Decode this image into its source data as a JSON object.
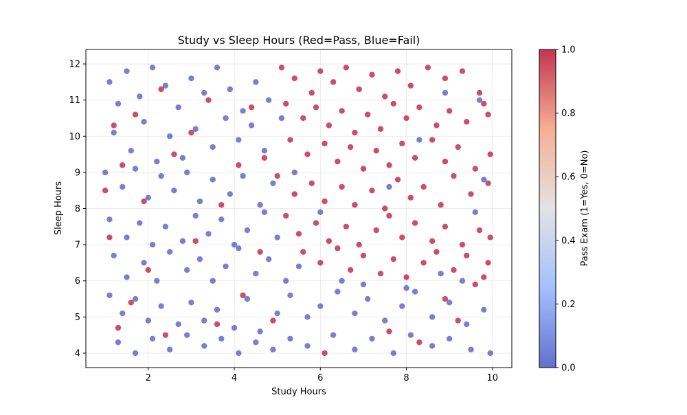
{
  "chart_data": {
    "type": "scatter",
    "title": "Study vs Sleep Hours (Red=Pass, Blue=Fail)",
    "xlabel": "Study Hours",
    "ylabel": "Sleep Hours",
    "xlim": [
      0.55,
      10.45
    ],
    "ylim": [
      3.6,
      12.4
    ],
    "xticks": [
      "2",
      "4",
      "6",
      "8",
      "10"
    ],
    "yticks": [
      "4",
      "5",
      "6",
      "7",
      "8",
      "9",
      "10",
      "11",
      "12"
    ],
    "grid": true,
    "colorbar": {
      "label": "Pass Exam (1=Yes, 0=No)",
      "ticks": [
        "0.0",
        "0.2",
        "0.4",
        "0.6",
        "0.8",
        "1.0"
      ],
      "colormap": "coolwarm",
      "range": [
        0,
        1
      ]
    },
    "series": [
      {
        "name": "Pass",
        "value": 1,
        "color": "#b40426",
        "points": [
          [
            5.1,
            11.9
          ],
          [
            5.4,
            11.6
          ],
          [
            5.8,
            11.2
          ],
          [
            6.0,
            11.8
          ],
          [
            6.3,
            11.5
          ],
          [
            6.6,
            11.9
          ],
          [
            6.9,
            11.3
          ],
          [
            7.2,
            11.7
          ],
          [
            7.5,
            11.1
          ],
          [
            7.8,
            11.8
          ],
          [
            8.1,
            11.4
          ],
          [
            8.5,
            11.9
          ],
          [
            8.9,
            11.6
          ],
          [
            9.3,
            11.8
          ],
          [
            9.7,
            11.2
          ],
          [
            9.9,
            10.6
          ],
          [
            5.2,
            10.9
          ],
          [
            5.6,
            10.5
          ],
          [
            5.9,
            10.8
          ],
          [
            6.2,
            10.3
          ],
          [
            6.5,
            10.7
          ],
          [
            6.8,
            10.1
          ],
          [
            7.1,
            10.6
          ],
          [
            7.4,
            10.2
          ],
          [
            7.7,
            10.9
          ],
          [
            8.0,
            10.5
          ],
          [
            8.3,
            10.8
          ],
          [
            8.7,
            10.3
          ],
          [
            9.0,
            10.7
          ],
          [
            9.4,
            10.4
          ],
          [
            9.8,
            10.9
          ],
          [
            5.3,
            9.9
          ],
          [
            5.7,
            9.5
          ],
          [
            6.1,
            9.8
          ],
          [
            6.4,
            9.3
          ],
          [
            6.7,
            9.7
          ],
          [
            7.0,
            9.1
          ],
          [
            7.3,
            9.6
          ],
          [
            7.6,
            9.2
          ],
          [
            7.9,
            9.8
          ],
          [
            8.2,
            9.4
          ],
          [
            8.6,
            9.9
          ],
          [
            8.9,
            9.3
          ],
          [
            9.2,
            9.7
          ],
          [
            9.6,
            9.1
          ],
          [
            9.95,
            9.5
          ],
          [
            5.0,
            8.9
          ],
          [
            5.4,
            8.4
          ],
          [
            5.8,
            8.7
          ],
          [
            6.1,
            8.2
          ],
          [
            6.5,
            8.6
          ],
          [
            6.8,
            8.1
          ],
          [
            7.2,
            8.5
          ],
          [
            7.5,
            8.0
          ],
          [
            7.8,
            8.8
          ],
          [
            8.1,
            8.3
          ],
          [
            8.4,
            8.6
          ],
          [
            8.8,
            8.1
          ],
          [
            9.1,
            8.9
          ],
          [
            9.5,
            8.4
          ],
          [
            9.9,
            8.7
          ],
          [
            5.2,
            7.8
          ],
          [
            5.5,
            7.3
          ],
          [
            5.9,
            7.6
          ],
          [
            6.2,
            7.1
          ],
          [
            6.6,
            7.5
          ],
          [
            6.9,
            7.0
          ],
          [
            7.3,
            7.4
          ],
          [
            7.6,
            7.8
          ],
          [
            7.9,
            7.2
          ],
          [
            8.2,
            7.6
          ],
          [
            8.6,
            7.1
          ],
          [
            8.9,
            7.5
          ],
          [
            9.3,
            7.0
          ],
          [
            9.7,
            7.4
          ],
          [
            9.95,
            7.2
          ],
          [
            5.6,
            6.8
          ],
          [
            6.0,
            6.5
          ],
          [
            6.4,
            6.9
          ],
          [
            6.7,
            6.3
          ],
          [
            7.0,
            6.7
          ],
          [
            7.4,
            6.2
          ],
          [
            7.7,
            6.6
          ],
          [
            8.0,
            6.1
          ],
          [
            8.4,
            6.5
          ],
          [
            8.7,
            6.8
          ],
          [
            9.1,
            6.3
          ],
          [
            9.4,
            6.7
          ],
          [
            9.8,
            6.1
          ],
          [
            9.9,
            6.5
          ],
          [
            1.0,
            8.5
          ],
          [
            1.2,
            10.3
          ],
          [
            1.4,
            9.2
          ],
          [
            1.7,
            10.6
          ],
          [
            1.9,
            8.2
          ],
          [
            2.3,
            11.3
          ],
          [
            2.6,
            9.5
          ],
          [
            3.0,
            10.1
          ],
          [
            3.4,
            11.0
          ],
          [
            3.7,
            8.1
          ],
          [
            4.1,
            9.2
          ],
          [
            4.4,
            10.8
          ],
          [
            4.7,
            9.4
          ],
          [
            1.1,
            7.2
          ],
          [
            1.6,
            5.4
          ],
          [
            2.0,
            6.3
          ],
          [
            2.4,
            4.5
          ],
          [
            3.1,
            7.1
          ],
          [
            3.6,
            4.8
          ],
          [
            4.2,
            5.6
          ],
          [
            4.6,
            6.8
          ],
          [
            1.3,
            4.7
          ],
          [
            4.9,
            4.9
          ],
          [
            6.1,
            4.0
          ],
          [
            7.6,
            4.6
          ],
          [
            8.3,
            4.3
          ],
          [
            8.9,
            5.5
          ],
          [
            9.2,
            4.9
          ],
          [
            9.6,
            5.9
          ]
        ]
      },
      {
        "name": "Fail",
        "value": 0,
        "color": "#3b4cc0",
        "points": [
          [
            1.1,
            11.5
          ],
          [
            1.3,
            10.9
          ],
          [
            1.5,
            11.8
          ],
          [
            1.8,
            11.1
          ],
          [
            2.1,
            11.9
          ],
          [
            2.4,
            11.4
          ],
          [
            2.7,
            10.8
          ],
          [
            3.0,
            11.6
          ],
          [
            3.3,
            11.2
          ],
          [
            3.6,
            11.9
          ],
          [
            3.9,
            11.3
          ],
          [
            4.2,
            10.7
          ],
          [
            4.5,
            11.5
          ],
          [
            4.8,
            11.0
          ],
          [
            1.2,
            10.1
          ],
          [
            1.6,
            9.6
          ],
          [
            1.9,
            10.4
          ],
          [
            2.2,
            9.3
          ],
          [
            2.5,
            10.0
          ],
          [
            2.8,
            9.4
          ],
          [
            3.1,
            10.2
          ],
          [
            3.5,
            9.7
          ],
          [
            3.8,
            10.5
          ],
          [
            4.1,
            9.9
          ],
          [
            4.4,
            10.3
          ],
          [
            4.7,
            9.6
          ],
          [
            1.0,
            9.0
          ],
          [
            1.4,
            8.6
          ],
          [
            1.7,
            9.1
          ],
          [
            2.0,
            8.3
          ],
          [
            2.3,
            8.9
          ],
          [
            2.6,
            8.5
          ],
          [
            2.9,
            9.0
          ],
          [
            3.2,
            8.2
          ],
          [
            3.5,
            8.8
          ],
          [
            3.9,
            8.4
          ],
          [
            4.2,
            8.9
          ],
          [
            4.6,
            8.1
          ],
          [
            4.9,
            8.7
          ],
          [
            1.1,
            7.7
          ],
          [
            1.5,
            7.2
          ],
          [
            1.8,
            7.6
          ],
          [
            2.1,
            7.0
          ],
          [
            2.4,
            7.5
          ],
          [
            2.8,
            7.1
          ],
          [
            3.1,
            7.8
          ],
          [
            3.4,
            7.3
          ],
          [
            3.7,
            7.7
          ],
          [
            4.0,
            7.0
          ],
          [
            4.3,
            7.4
          ],
          [
            4.7,
            7.9
          ],
          [
            5.0,
            7.2
          ],
          [
            1.2,
            6.7
          ],
          [
            1.5,
            6.1
          ],
          [
            1.9,
            6.5
          ],
          [
            2.2,
            6.0
          ],
          [
            2.5,
            6.8
          ],
          [
            2.9,
            6.3
          ],
          [
            3.2,
            6.6
          ],
          [
            3.5,
            6.0
          ],
          [
            3.8,
            6.4
          ],
          [
            4.1,
            6.9
          ],
          [
            4.5,
            6.2
          ],
          [
            4.8,
            6.6
          ],
          [
            5.2,
            6.0
          ],
          [
            5.5,
            6.4
          ],
          [
            1.1,
            5.6
          ],
          [
            1.4,
            5.1
          ],
          [
            1.7,
            5.5
          ],
          [
            2.0,
            4.9
          ],
          [
            2.3,
            5.3
          ],
          [
            2.7,
            4.8
          ],
          [
            3.0,
            5.4
          ],
          [
            3.3,
            4.9
          ],
          [
            3.6,
            5.2
          ],
          [
            4.0,
            4.7
          ],
          [
            4.3,
            5.5
          ],
          [
            4.6,
            4.6
          ],
          [
            5.0,
            5.1
          ],
          [
            5.3,
            5.6
          ],
          [
            5.7,
            5.0
          ],
          [
            6.0,
            5.3
          ],
          [
            6.4,
            5.7
          ],
          [
            6.8,
            5.1
          ],
          [
            7.1,
            5.5
          ],
          [
            7.5,
            4.9
          ],
          [
            7.9,
            5.3
          ],
          [
            8.2,
            5.7
          ],
          [
            8.6,
            5.0
          ],
          [
            9.0,
            5.4
          ],
          [
            9.4,
            4.8
          ],
          [
            9.8,
            5.2
          ],
          [
            1.3,
            4.3
          ],
          [
            1.7,
            4.0
          ],
          [
            2.1,
            4.4
          ],
          [
            2.5,
            4.1
          ],
          [
            2.9,
            4.5
          ],
          [
            3.3,
            4.2
          ],
          [
            3.7,
            4.4
          ],
          [
            4.1,
            4.0
          ],
          [
            4.5,
            4.3
          ],
          [
            4.9,
            4.1
          ],
          [
            5.3,
            4.4
          ],
          [
            5.7,
            4.2
          ],
          [
            6.3,
            4.5
          ],
          [
            6.8,
            4.1
          ],
          [
            7.2,
            4.4
          ],
          [
            7.7,
            4.0
          ],
          [
            8.1,
            4.5
          ],
          [
            8.6,
            4.2
          ],
          [
            9.0,
            4.4
          ],
          [
            9.5,
            4.1
          ],
          [
            9.95,
            4.0
          ],
          [
            5.4,
            9.0
          ],
          [
            5.1,
            10.5
          ],
          [
            6.0,
            7.9
          ],
          [
            7.0,
            5.9
          ],
          [
            8.0,
            5.8
          ],
          [
            8.8,
            6.2
          ],
          [
            9.3,
            6.0
          ],
          [
            9.6,
            7.9
          ],
          [
            9.8,
            8.8
          ],
          [
            9.7,
            11.0
          ],
          [
            8.9,
            11.2
          ],
          [
            8.3,
            9.9
          ],
          [
            7.6,
            8.6
          ],
          [
            6.5,
            6.0
          ]
        ]
      }
    ]
  }
}
